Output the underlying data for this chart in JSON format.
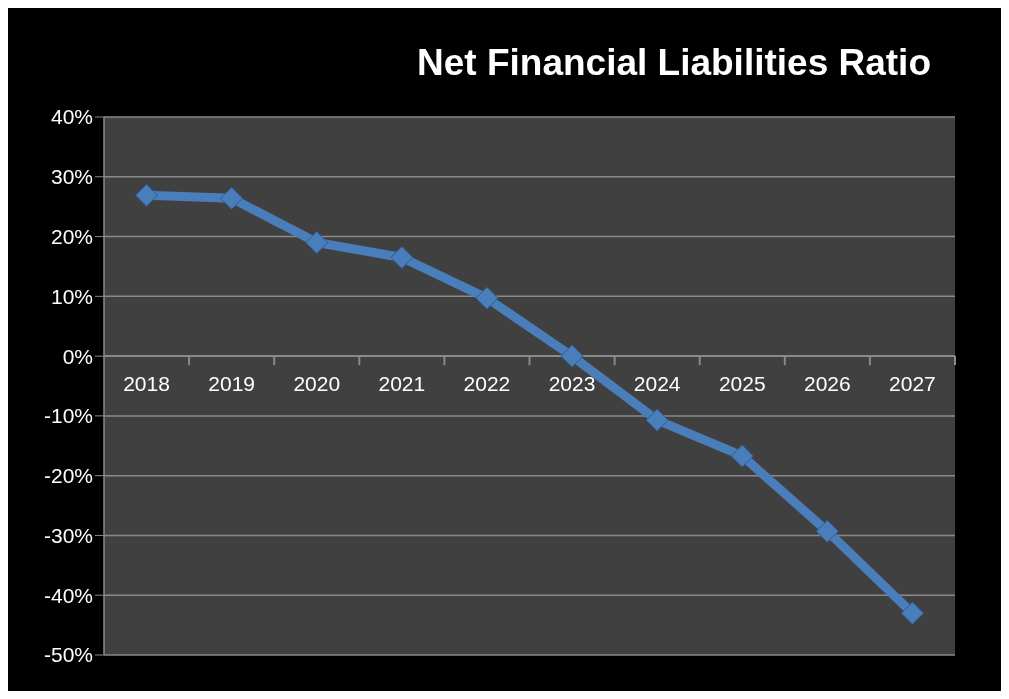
{
  "chart_data": {
    "type": "line",
    "title": "Net Financial Liabilities Ratio",
    "categories": [
      "2018",
      "2019",
      "2020",
      "2021",
      "2022",
      "2023",
      "2024",
      "2025",
      "2026",
      "2027"
    ],
    "series": [
      {
        "color": "#4a7ebb",
        "values": [
          26.9,
          26.4,
          19.0,
          16.5,
          9.7,
          0,
          -10.7,
          -16.7,
          -29.3,
          -43
        ]
      }
    ],
    "ylim": [
      -50,
      40
    ],
    "yticks": [
      {
        "value": -50,
        "label": "-50%"
      },
      {
        "value": -40,
        "label": "-40%"
      },
      {
        "value": -30,
        "label": "-30%"
      },
      {
        "value": -20,
        "label": "-20%"
      },
      {
        "value": -10,
        "label": "-10%"
      },
      {
        "value": 0,
        "label": "0%"
      },
      {
        "value": 10,
        "label": "10%"
      },
      {
        "value": 20,
        "label": "20%"
      },
      {
        "value": 30,
        "label": "30%"
      },
      {
        "value": 40,
        "label": "40%"
      }
    ],
    "grid": "y",
    "legend": false,
    "marker": "diamond",
    "line_style": "solid"
  }
}
